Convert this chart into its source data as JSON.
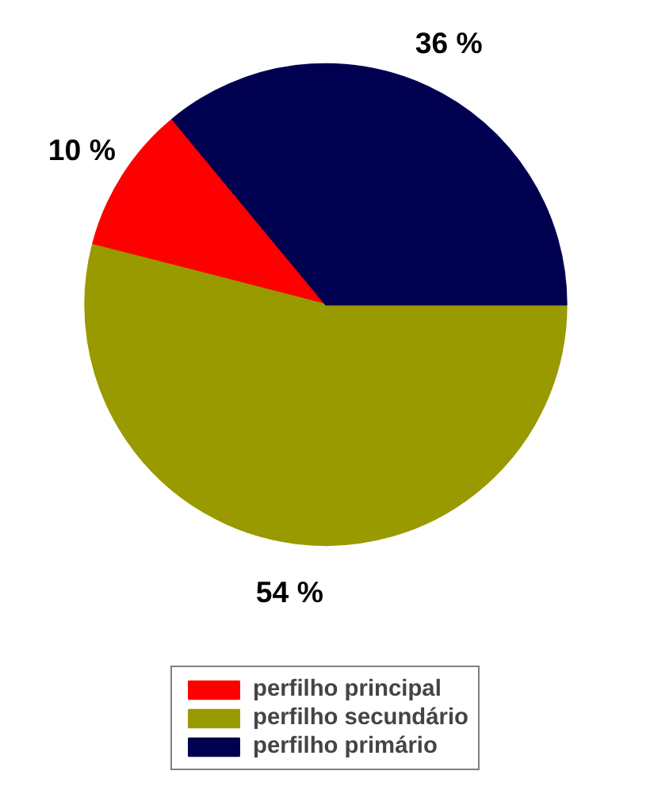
{
  "chart_data": {
    "type": "pie",
    "categories": [
      "perfilho principal",
      "perfilho secundário",
      "perfilho primário"
    ],
    "values": [
      10,
      54,
      36
    ],
    "colors": [
      "#ff0000",
      "#999900",
      "#000050"
    ],
    "value_labels": [
      "10 %",
      "54 %",
      "36 %"
    ],
    "legend": "bottom"
  }
}
